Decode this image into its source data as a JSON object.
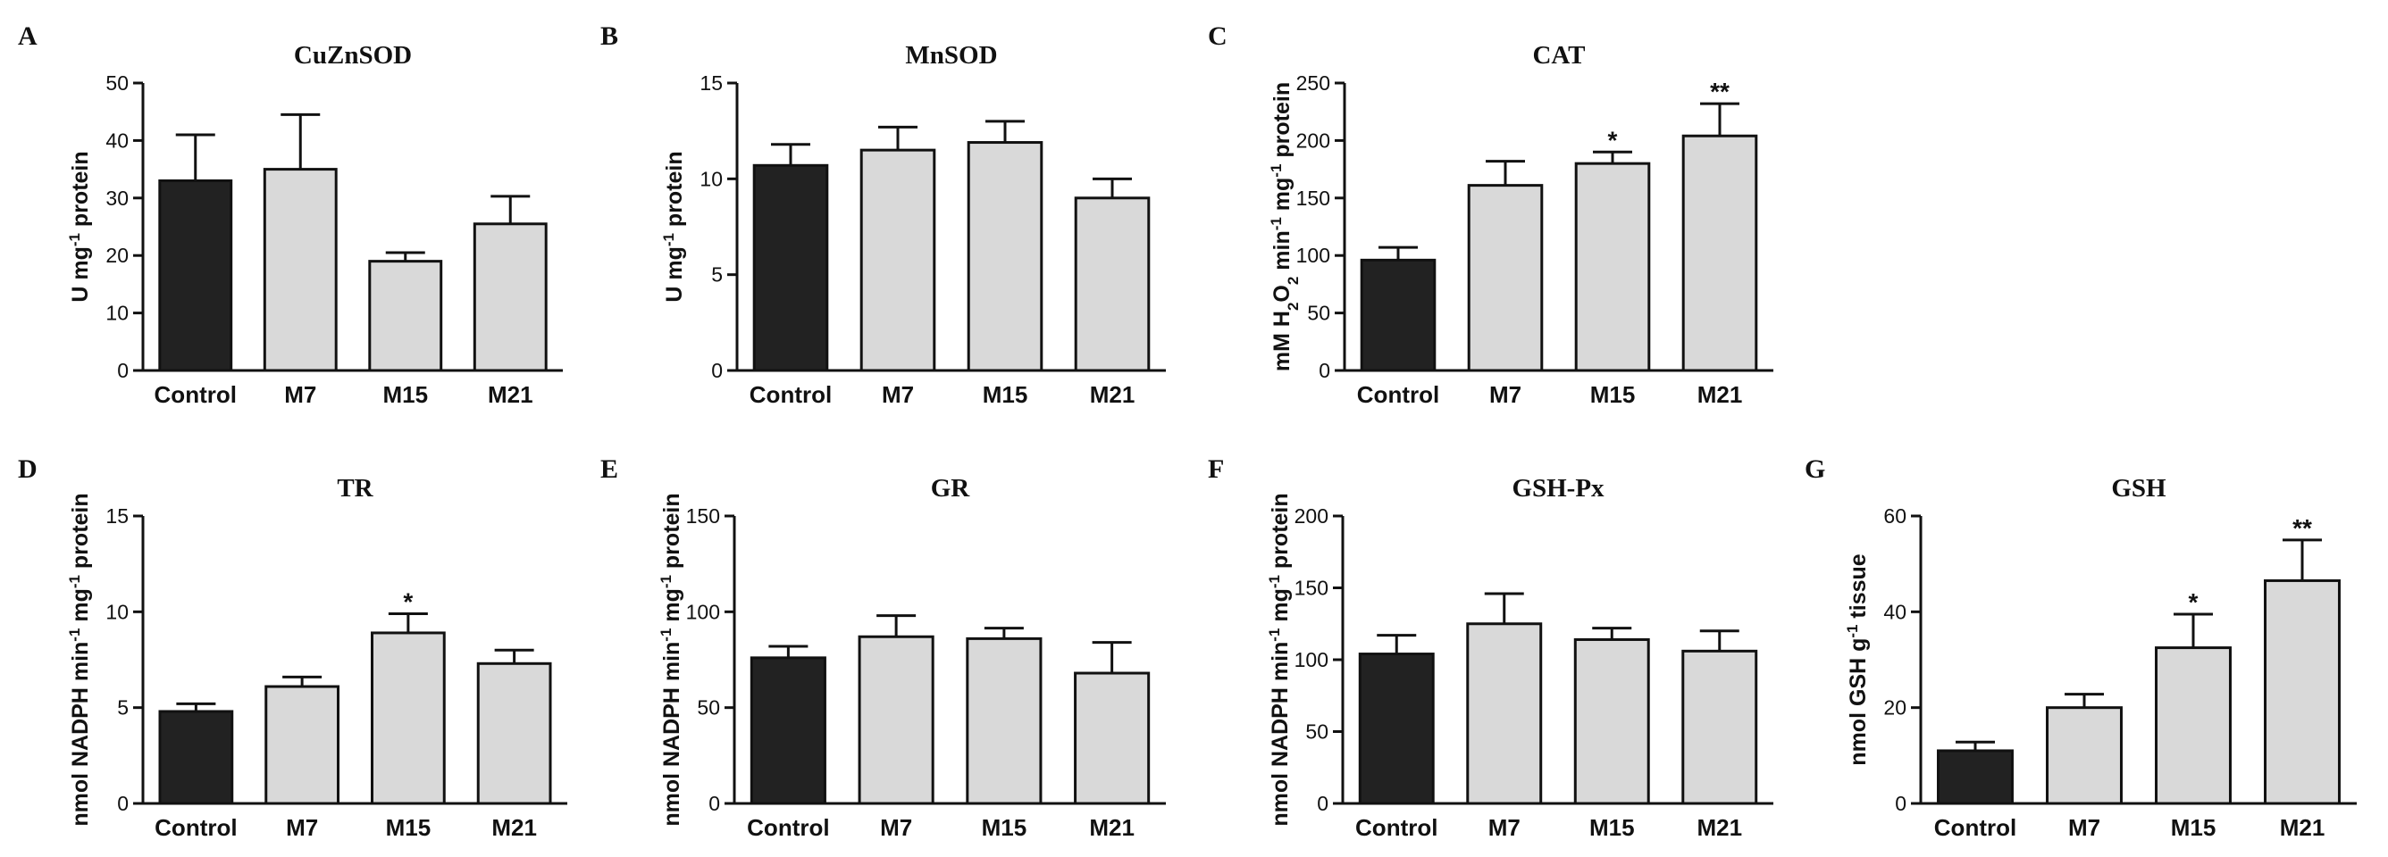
{
  "figure": {
    "background": "#ffffff"
  },
  "colors": {
    "control": "#222222",
    "treatment": "#d9d9d9",
    "stroke": "#111111"
  },
  "chart_data": [
    {
      "panel": "A",
      "type": "bar",
      "title": "CuZnSOD",
      "categories": [
        "Control",
        "M7",
        "M15",
        "M21"
      ],
      "values": [
        33,
        35,
        19,
        25.5
      ],
      "errors": [
        8,
        9.5,
        1.5,
        4.8
      ],
      "significance": [
        "",
        "",
        "",
        ""
      ],
      "ylabel_parts": [
        {
          "t": "U mg"
        },
        {
          "t": "-1",
          "sup": true
        },
        {
          "t": " protein"
        }
      ],
      "ylim": [
        0,
        50
      ],
      "yticks": [
        0,
        10,
        20,
        30,
        40,
        50
      ]
    },
    {
      "panel": "B",
      "type": "bar",
      "title": "MnSOD",
      "categories": [
        "Control",
        "M7",
        "M15",
        "M21"
      ],
      "values": [
        10.7,
        11.5,
        11.9,
        9.0
      ],
      "errors": [
        1.1,
        1.2,
        1.1,
        1.0
      ],
      "significance": [
        "",
        "",
        "",
        ""
      ],
      "ylabel_parts": [
        {
          "t": "U mg"
        },
        {
          "t": "-1",
          "sup": true
        },
        {
          "t": " protein"
        }
      ],
      "ylim": [
        0,
        15
      ],
      "yticks": [
        0,
        5,
        10,
        15
      ]
    },
    {
      "panel": "C",
      "type": "bar",
      "title": "CAT",
      "categories": [
        "Control",
        "M7",
        "M15",
        "M21"
      ],
      "values": [
        96,
        161,
        180,
        204
      ],
      "errors": [
        11,
        21,
        10,
        28
      ],
      "significance": [
        "",
        "",
        "*",
        "**"
      ],
      "ylabel_parts": [
        {
          "t": "mM H"
        },
        {
          "t": "2",
          "sub": true
        },
        {
          "t": "O"
        },
        {
          "t": "2",
          "sub": true
        },
        {
          "t": " min"
        },
        {
          "t": "-1",
          "sup": true
        },
        {
          "t": " mg"
        },
        {
          "t": "-1",
          "sup": true
        },
        {
          "t": " protein"
        }
      ],
      "ylim": [
        0,
        250
      ],
      "yticks": [
        0,
        50,
        100,
        150,
        200,
        250
      ]
    },
    {
      "panel": "D",
      "type": "bar",
      "title": "TR",
      "categories": [
        "Control",
        "M7",
        "M15",
        "M21"
      ],
      "values": [
        4.8,
        6.1,
        8.9,
        7.3
      ],
      "errors": [
        0.4,
        0.5,
        1.0,
        0.7
      ],
      "significance": [
        "",
        "",
        "*",
        ""
      ],
      "ylabel_parts": [
        {
          "t": "nmol NADPH min"
        },
        {
          "t": "-1",
          "sup": true
        },
        {
          "t": " mg"
        },
        {
          "t": "-1",
          "sup": true
        },
        {
          "t": " protein"
        }
      ],
      "ylim": [
        0,
        15
      ],
      "yticks": [
        0,
        5,
        10,
        15
      ]
    },
    {
      "panel": "E",
      "type": "bar",
      "title": "GR",
      "categories": [
        "Control",
        "M7",
        "M15",
        "M21"
      ],
      "values": [
        76,
        87,
        86,
        68
      ],
      "errors": [
        6,
        11,
        5.5,
        16
      ],
      "significance": [
        "",
        "",
        "",
        ""
      ],
      "ylabel_parts": [
        {
          "t": "nmol NADPH min"
        },
        {
          "t": "-1",
          "sup": true
        },
        {
          "t": " mg"
        },
        {
          "t": "-1",
          "sup": true
        },
        {
          "t": " protein"
        }
      ],
      "ylim": [
        0,
        150
      ],
      "yticks": [
        0,
        50,
        100,
        150
      ]
    },
    {
      "panel": "F",
      "type": "bar",
      "title": "GSH-Px",
      "categories": [
        "Control",
        "M7",
        "M15",
        "M21"
      ],
      "values": [
        104,
        125,
        114,
        106
      ],
      "errors": [
        13,
        21,
        8,
        14
      ],
      "significance": [
        "",
        "",
        "",
        ""
      ],
      "ylabel_parts": [
        {
          "t": "nmol NADPH min"
        },
        {
          "t": "-1",
          "sup": true
        },
        {
          "t": " mg"
        },
        {
          "t": "-1",
          "sup": true
        },
        {
          "t": " protein"
        }
      ],
      "ylim": [
        0,
        200
      ],
      "yticks": [
        0,
        50,
        100,
        150,
        200
      ]
    },
    {
      "panel": "G",
      "type": "bar",
      "title": "GSH",
      "categories": [
        "Control",
        "M7",
        "M15",
        "M21"
      ],
      "values": [
        11,
        20,
        32.5,
        46.5
      ],
      "errors": [
        1.8,
        2.8,
        7,
        8.5
      ],
      "significance": [
        "",
        "",
        "*",
        "**"
      ],
      "ylabel_parts": [
        {
          "t": "nmol GSH g"
        },
        {
          "t": "-1",
          "sup": true
        },
        {
          "t": " tissue"
        }
      ],
      "ylim": [
        0,
        60
      ],
      "yticks": [
        0,
        20,
        40,
        60
      ]
    }
  ]
}
